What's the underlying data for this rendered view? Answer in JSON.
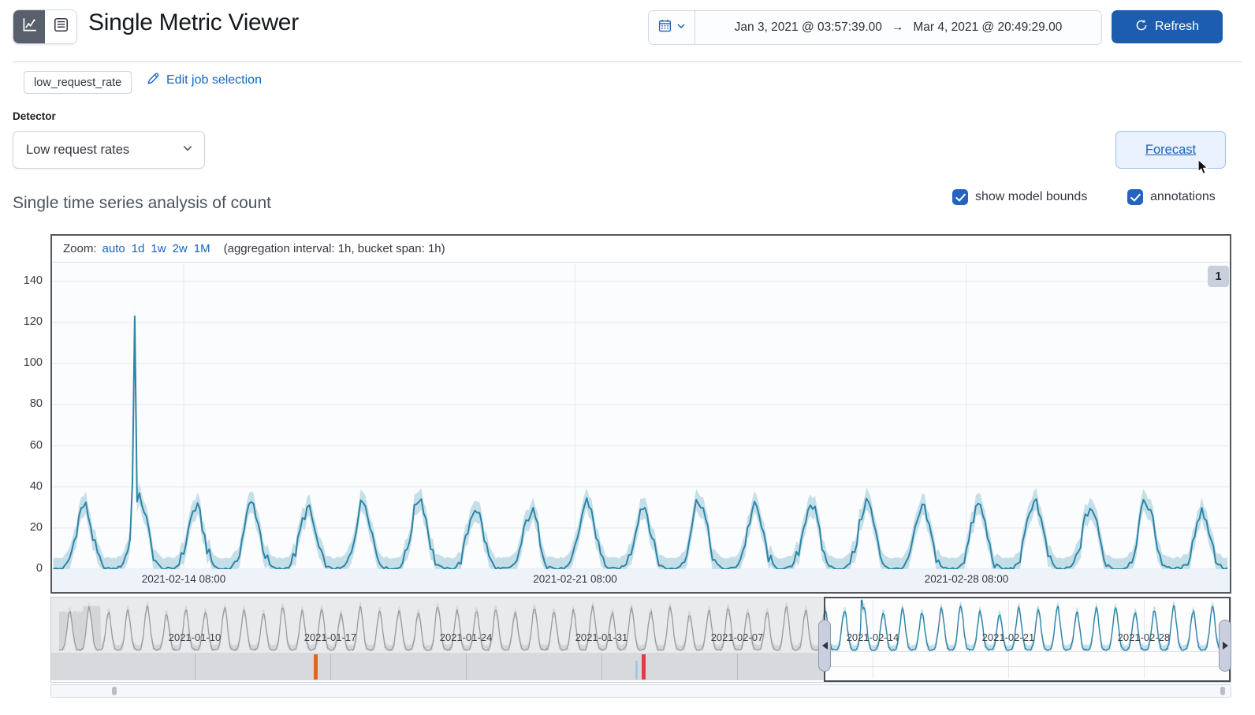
{
  "header": {
    "title": "Single Metric Viewer",
    "view_toggle": {
      "chart_icon": "line-chart-icon",
      "table_icon": "data-table-icon"
    },
    "datepicker": {
      "start": "Jan 3, 2021 @ 03:57:39.00",
      "arrow": "→",
      "end": "Mar 4, 2021 @ 20:49:29.00"
    },
    "refresh_label": "Refresh"
  },
  "job": {
    "badge": "low_request_rate",
    "edit_link": "Edit job selection"
  },
  "detector": {
    "label": "Detector",
    "selected": "Low request rates"
  },
  "forecast_label": "Forecast",
  "series_heading": "Single time series analysis of count",
  "toggles": {
    "model_bounds": {
      "label": "show model bounds",
      "checked": true
    },
    "annotations": {
      "label": "annotations",
      "checked": true
    }
  },
  "chart_header": {
    "zoom_label": "Zoom:",
    "zoom_options": [
      "auto",
      "1d",
      "1w",
      "2w",
      "1M"
    ],
    "aggregation_note": "(aggregation interval: 1h, bucket span: 1h)"
  },
  "annotation_badge": "1",
  "colors": {
    "accent_link": "#1565c0",
    "primary_fill": "#1d5db0",
    "checkbox_fill": "#2563c0",
    "teal_line": "#2e84a6",
    "teal_band": "#c5dfe9",
    "grey_line": "#97999d",
    "grey_band": "#d4d5d7",
    "orange_marker": "#e4641c",
    "red_marker": "#e7394a",
    "annotation_tick": "#a3c9de",
    "badge_bg": "#c9cfdd"
  },
  "chart_data": [
    {
      "id": "focus-chart",
      "type": "line",
      "metric": "count",
      "x_start": "2021-02-12 00:00",
      "x_end": "2021-03-05 01:00",
      "x_ticks": [
        "2021-02-14 08:00",
        "2021-02-21 08:00",
        "2021-02-28 08:00"
      ],
      "ylim": [
        0,
        148
      ],
      "y_ticks": [
        0,
        20,
        40,
        60,
        80,
        100,
        120,
        140
      ],
      "bucket_span": "1h",
      "daily_peak_values": [
        31,
        34,
        30,
        32,
        29,
        33,
        35,
        30,
        28,
        33,
        31,
        34,
        30,
        32,
        33,
        29,
        31,
        34,
        30,
        33,
        28
      ],
      "anomaly_spike": {
        "time": "2021-02-13 11:00",
        "value": 123
      },
      "model_bounds_margin": 5.2,
      "annotation_count": "1"
    },
    {
      "id": "context-chart",
      "type": "line",
      "x_start": "2021-01-03 00:00",
      "x_end": "2021-03-04 21:00",
      "x_ticks": [
        "2021-01-10",
        "2021-01-17",
        "2021-01-24",
        "2021-01-31",
        "2021-02-07",
        "2021-02-14",
        "2021-02-21",
        "2021-02-28"
      ],
      "selection": {
        "from": "2021-02-11 14:00",
        "to": "2021-03-04 21:00"
      },
      "daily_peak_values": [
        30,
        33,
        29,
        31,
        34,
        28,
        32,
        30,
        33,
        31,
        29,
        34,
        30,
        32,
        28,
        33,
        30,
        31,
        29,
        34,
        31,
        30,
        32,
        29,
        33,
        30,
        31,
        34,
        29,
        32,
        30,
        33,
        28,
        31,
        33,
        30,
        29,
        34,
        31,
        32,
        31,
        34,
        30,
        32,
        29,
        33,
        35,
        30,
        28,
        33,
        31,
        34,
        30,
        32,
        33,
        29,
        31,
        34,
        30,
        33,
        28
      ],
      "anomaly_spike": {
        "time": "2021-02-13 11:00",
        "value": 123
      },
      "model_bounds_margin": 3.8,
      "swimlane_markers": [
        {
          "time": "2021-01-16 05:00",
          "kind": "anomaly",
          "severity": "major",
          "color": "#e4641c"
        },
        {
          "time": "2021-02-01 20:00",
          "kind": "annotation",
          "color": "#a3c9de"
        },
        {
          "time": "2021-02-02 04:00",
          "kind": "anomaly",
          "severity": "critical",
          "color": "#e7394a"
        }
      ]
    }
  ]
}
